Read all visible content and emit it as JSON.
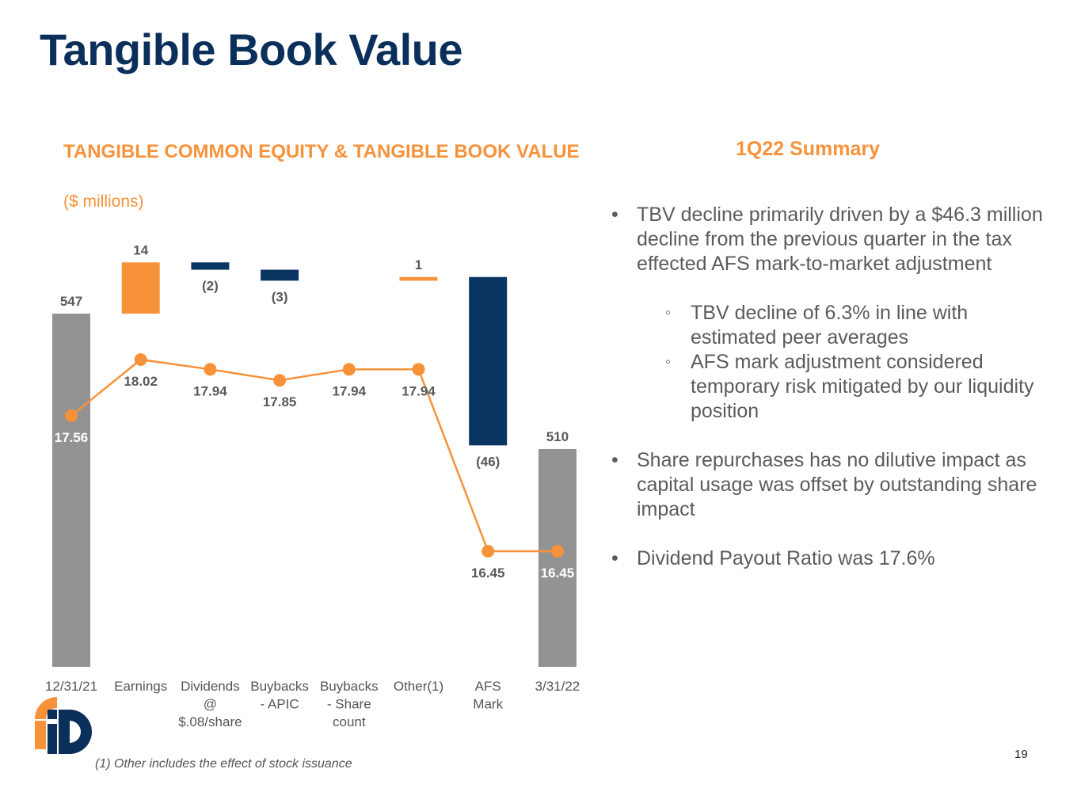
{
  "page": {
    "title": "Tangible Book Value",
    "page_number": "19",
    "footnote": "(1) Other includes the effect of stock issuance"
  },
  "chart_data": {
    "type": "waterfall",
    "title": "TANGIBLE COMMON EQUITY & TANGIBLE BOOK VALUE",
    "subtitle": "($ millions)",
    "categories": [
      [
        "12/31/21"
      ],
      [
        "Earnings"
      ],
      [
        "Dividends",
        "@",
        "$.08/share"
      ],
      [
        "Buybacks",
        "- APIC"
      ],
      [
        "Buybacks",
        "- Share",
        "count"
      ],
      [
        "Other(1)"
      ],
      [
        "AFS",
        "Mark"
      ],
      [
        "3/31/22"
      ]
    ],
    "bars": [
      {
        "kind": "total",
        "start": 0,
        "end": 547,
        "label": "547"
      },
      {
        "kind": "increase",
        "start": 547,
        "end": 561,
        "label": "14"
      },
      {
        "kind": "decrease",
        "start": 561,
        "end": 559,
        "label": "(2)"
      },
      {
        "kind": "decrease",
        "start": 559,
        "end": 556,
        "label": "(3)"
      },
      {
        "kind": "none",
        "start": 556,
        "end": 556,
        "label": ""
      },
      {
        "kind": "increase",
        "start": 556,
        "end": 557,
        "label": "1"
      },
      {
        "kind": "decrease",
        "start": 557,
        "end": 511,
        "label": "(46)"
      },
      {
        "kind": "total",
        "start": 0,
        "end": 510,
        "label": "510"
      }
    ],
    "tbv_line": {
      "values": [
        17.56,
        18.02,
        17.94,
        17.85,
        17.94,
        17.94,
        16.45,
        16.45
      ],
      "labels": [
        "17.56",
        "18.02",
        "17.94",
        "17.85",
        "17.94",
        "17.94",
        "16.45",
        "16.45"
      ]
    },
    "colors": {
      "total": "#939393",
      "increase": "#f7923a",
      "decrease": "#0b3563",
      "line": "#f7923a",
      "label_dark": "#595959",
      "label_light": "#ffffff"
    }
  },
  "summary": {
    "title": "1Q22 Summary",
    "bullet1": "TBV decline primarily driven by a $46.3 million decline from the previous quarter in the tax effected AFS mark-to-market adjustment",
    "sub1": "TBV decline of 6.3% in line with estimated peer averages",
    "sub2": "AFS mark adjustment considered temporary risk mitigated by our liquidity position",
    "bullet2": "Share repurchases has no dilutive impact as capital usage was offset by outstanding share impact",
    "bullet3": "Dividend Payout Ratio was 17.6%"
  },
  "colors": {
    "title": "#0b2f5b",
    "accent": "#f7923a",
    "body_text": "#5b5b5b"
  }
}
